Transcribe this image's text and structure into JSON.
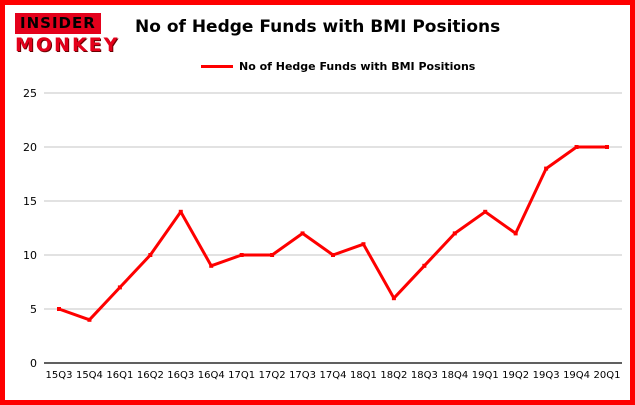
{
  "header": {
    "logo_line1": "INSIDER",
    "logo_line2": "MONKEY",
    "title": "No of Hedge Funds with BMI Positions"
  },
  "legend": {
    "label": "No of Hedge Funds with BMI Positions"
  },
  "colors": {
    "accent_red": "#fe0000",
    "line": "#fe0000",
    "grid": "#c6c6c6",
    "axis": "#000000",
    "text": "#000000"
  },
  "chart_data": {
    "type": "line",
    "title": "No of Hedge Funds with BMI Positions",
    "categories": [
      "15Q3",
      "15Q4",
      "16Q1",
      "16Q2",
      "16Q3",
      "16Q4",
      "17Q1",
      "17Q2",
      "17Q3",
      "17Q4",
      "18Q1",
      "18Q2",
      "18Q3",
      "18Q4",
      "19Q1",
      "19Q2",
      "19Q3",
      "19Q4",
      "20Q1"
    ],
    "values": [
      5,
      4,
      7,
      10,
      14,
      9,
      10,
      10,
      12,
      10,
      11,
      6,
      9,
      12,
      14,
      12,
      18,
      20,
      20
    ],
    "xlabel": "",
    "ylabel": "",
    "ylim": [
      0,
      25
    ],
    "yticks": [
      0,
      5,
      10,
      15,
      20,
      25
    ],
    "grid": true,
    "legend_position": "top-center",
    "series_name": "No of Hedge Funds with BMI Positions"
  }
}
